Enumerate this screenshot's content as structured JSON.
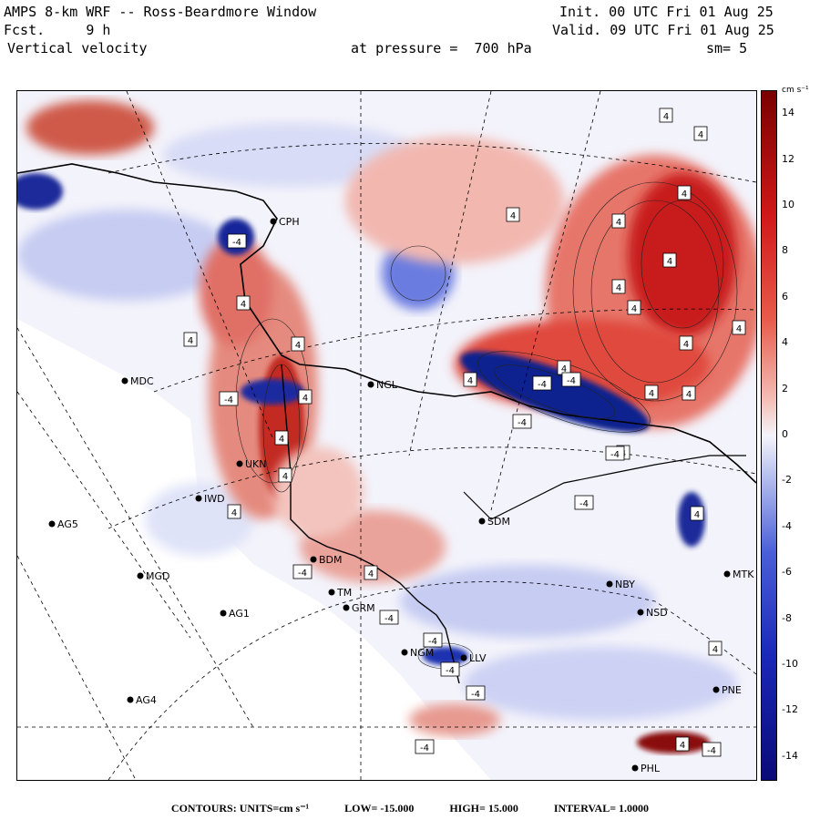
{
  "header": {
    "title": "AMPS 8-km WRF -- Ross-Beardmore Window",
    "fcst_label": "Fcst.",
    "fcst_value": "9 h",
    "field": "Vertical velocity",
    "init": "Init. 00 UTC Fri 01 Aug 25",
    "valid": "Valid. 09 UTC Fri 01 Aug 25",
    "pressure": "at pressure =  700 hPa",
    "smooth": "sm= 5"
  },
  "colorbar": {
    "unit": "cm s⁻¹",
    "ticks": [
      "14",
      "12",
      "10",
      "8",
      "6",
      "4",
      "2",
      "0",
      "-2",
      "-4",
      "-6",
      "-8",
      "-10",
      "-12",
      "-14"
    ],
    "min": -15,
    "max": 15,
    "colors": {
      "neg_max": "#0a0a78",
      "neg_mid": "#4a5fd8",
      "neutral": "#f4f4fa",
      "pos_mid": "#e85a4a",
      "pos_max": "#7a0000"
    }
  },
  "stations": [
    {
      "name": "CPH"
    },
    {
      "name": "MDC"
    },
    {
      "name": "NGL"
    },
    {
      "name": "UKN"
    },
    {
      "name": "IWD"
    },
    {
      "name": "AG5"
    },
    {
      "name": "MGD"
    },
    {
      "name": "AG1"
    },
    {
      "name": "AG4"
    },
    {
      "name": "BDM"
    },
    {
      "name": "TM"
    },
    {
      "name": "GRM"
    },
    {
      "name": "SDM"
    },
    {
      "name": "NBY"
    },
    {
      "name": "NSD"
    },
    {
      "name": "MTK"
    },
    {
      "name": "PNE"
    },
    {
      "name": "PHL"
    },
    {
      "name": "NGM"
    },
    {
      "name": "LLV"
    }
  ],
  "box_labels": [
    "4",
    "-4"
  ],
  "footer": {
    "contours": "CONTOURS:  UNITS=cm s⁻¹",
    "low": "LOW= -15.000",
    "high": "HIGH=  15.000",
    "interval": "INTERVAL=   1.0000"
  }
}
